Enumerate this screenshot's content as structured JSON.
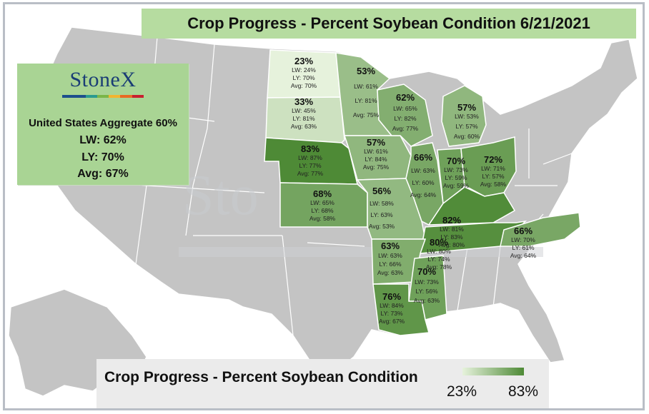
{
  "title": "Crop Progress - Percent Soybean Condition 6/21/2021",
  "brand": {
    "logo_text": "StoneX",
    "logo_bar_colors": [
      "#1c4e8c",
      "#1c4e8c",
      "#2a9a90",
      "#7ab648",
      "#f2b430",
      "#e86a24",
      "#c8202f"
    ]
  },
  "summary": {
    "aggregate": "United States Aggregate 60%",
    "lw": "LW: 62%",
    "ly": "LY: 70%",
    "avg": "Avg: 67%"
  },
  "legend": {
    "title": "Crop Progress - Percent Soybean Condition",
    "min_label": "23%",
    "max_label": "83%",
    "min_color": "#e6f2dc",
    "max_color": "#4e8a36"
  },
  "states": [
    {
      "id": "ND",
      "pct": "23%",
      "lw": "LW: 24%",
      "ly": "LY: 70%",
      "avg": "Avg: 70%",
      "value": 23
    },
    {
      "id": "MN",
      "pct": "53%",
      "lw": "LW: 61%",
      "ly": "LY: 81%",
      "avg": "Avg: 75%",
      "value": 53
    },
    {
      "id": "SD",
      "pct": "33%",
      "lw": "LW: 45%",
      "ly": "LY: 81%",
      "avg": "Avg: 63%",
      "value": 33
    },
    {
      "id": "WI",
      "pct": "62%",
      "lw": "LW: 65%",
      "ly": "LY: 82%",
      "avg": "Avg: 77%",
      "value": 62
    },
    {
      "id": "MI",
      "pct": "57%",
      "lw": "LW: 53%",
      "ly": "LY: 57%",
      "avg": "Avg: 60%",
      "value": 57
    },
    {
      "id": "NE",
      "pct": "83%",
      "lw": "LW: 87%",
      "ly": "LY: 77%",
      "avg": "Avg: 77%",
      "value": 83
    },
    {
      "id": "IA",
      "pct": "57%",
      "lw": "LW: 61%",
      "ly": "LY: 84%",
      "avg": "Avg: 75%",
      "value": 57
    },
    {
      "id": "IL",
      "pct": "66%",
      "lw": "LW: 63%",
      "ly": "LY: 60%",
      "avg": "Avg: 64%",
      "value": 66
    },
    {
      "id": "IN",
      "pct": "70%",
      "lw": "LW: 73%",
      "ly": "LY: 59%",
      "avg": "Avg: 59%",
      "value": 70
    },
    {
      "id": "OH",
      "pct": "72%",
      "lw": "LW: 71%",
      "ly": "LY: 57%",
      "avg": "Avg: 58%",
      "value": 72
    },
    {
      "id": "KS",
      "pct": "68%",
      "lw": "LW: 65%",
      "ly": "LY: 68%",
      "avg": "Avg: 58%",
      "value": 68
    },
    {
      "id": "MO",
      "pct": "56%",
      "lw": "LW: 58%",
      "ly": "LY: 63%",
      "avg": "Avg: 53%",
      "value": 56
    },
    {
      "id": "KY",
      "pct": "82%",
      "lw": "LW: 81%",
      "ly": "LY: 83%",
      "avg": "Avg: 80%",
      "value": 82
    },
    {
      "id": "TN",
      "pct": "80%",
      "lw": "LW: 80%",
      "ly": "LY: 74%",
      "avg": "Avg: 78%",
      "value": 80
    },
    {
      "id": "NC",
      "pct": "66%",
      "lw": "LW: 70%",
      "ly": "LY: 61%",
      "avg": "Avg: 64%",
      "value": 66
    },
    {
      "id": "AR",
      "pct": "63%",
      "lw": "LW: 63%",
      "ly": "LY: 66%",
      "avg": "Avg: 63%",
      "value": 63
    },
    {
      "id": "MS",
      "pct": "70%",
      "lw": "LW: 73%",
      "ly": "LY: 56%",
      "avg": "Avg: 63%",
      "value": 70
    },
    {
      "id": "LA",
      "pct": "76%",
      "lw": "LW: 84%",
      "ly": "LY: 73%",
      "avg": "Avg: 67%",
      "value": 76
    }
  ]
}
